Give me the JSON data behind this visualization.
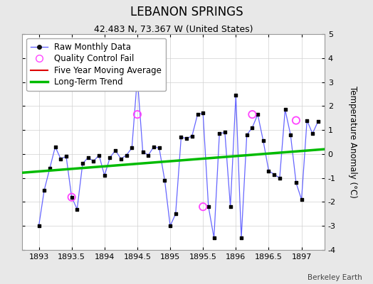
{
  "title": "LEBANON SPRINGS",
  "subtitle": "42.483 N, 73.367 W (United States)",
  "ylabel": "Temperature Anomaly (°C)",
  "credit": "Berkeley Earth",
  "xlim": [
    1892.75,
    1897.35
  ],
  "ylim": [
    -4,
    5
  ],
  "yticks": [
    -4,
    -3,
    -2,
    -1,
    0,
    1,
    2,
    3,
    4,
    5
  ],
  "xticks": [
    1893,
    1893.5,
    1894,
    1894.5,
    1895,
    1895.5,
    1896,
    1896.5,
    1897
  ],
  "xtick_labels": [
    "1893",
    "1893.5",
    "1894",
    "1894.5",
    "1895",
    "1895.5",
    "1896",
    "1896.5",
    "1897"
  ],
  "bg_color": "#e8e8e8",
  "plot_bg_color": "#ffffff",
  "raw_x": [
    1893.0,
    1893.083,
    1893.167,
    1893.25,
    1893.333,
    1893.417,
    1893.5,
    1893.583,
    1893.667,
    1893.75,
    1893.833,
    1893.917,
    1894.0,
    1894.083,
    1894.167,
    1894.25,
    1894.333,
    1894.417,
    1894.5,
    1894.583,
    1894.667,
    1894.75,
    1894.833,
    1894.917,
    1895.0,
    1895.083,
    1895.167,
    1895.25,
    1895.333,
    1895.417,
    1895.5,
    1895.583,
    1895.667,
    1895.75,
    1895.833,
    1895.917,
    1896.0,
    1896.083,
    1896.167,
    1896.25,
    1896.333,
    1896.417,
    1896.5,
    1896.583,
    1896.667,
    1896.75,
    1896.833,
    1896.917,
    1897.0,
    1897.083,
    1897.167,
    1897.25
  ],
  "raw_y": [
    -3.0,
    -1.5,
    -0.6,
    0.3,
    -0.2,
    -0.1,
    -1.8,
    -2.3,
    -0.4,
    -0.15,
    -0.3,
    -0.05,
    -0.9,
    -0.15,
    0.15,
    -0.2,
    -0.05,
    0.25,
    3.2,
    0.1,
    -0.05,
    0.3,
    0.25,
    -1.1,
    -3.0,
    -2.5,
    0.7,
    0.65,
    0.75,
    1.65,
    1.7,
    -2.2,
    -3.5,
    0.85,
    0.9,
    -2.2,
    2.45,
    -3.5,
    0.8,
    1.1,
    1.65,
    0.55,
    -0.7,
    -0.85,
    -1.0,
    1.85,
    0.8,
    -1.2,
    -1.9,
    1.4,
    0.85,
    1.35
  ],
  "qc_fail_x": [
    1893.5,
    1894.5,
    1895.5,
    1896.25,
    1896.917
  ],
  "qc_fail_y": [
    -1.8,
    1.65,
    -2.2,
    1.65,
    1.4
  ],
  "trend_x": [
    1892.75,
    1897.35
  ],
  "trend_y": [
    -0.78,
    0.2
  ],
  "raw_line_color": "#6666ff",
  "dot_color": "#000000",
  "qc_color": "#ff44ff",
  "trend_color": "#00bb00",
  "mavg_color": "#dd0000",
  "title_fontsize": 12,
  "subtitle_fontsize": 9,
  "legend_fontsize": 8.5,
  "tick_fontsize": 8,
  "ylabel_fontsize": 8.5
}
